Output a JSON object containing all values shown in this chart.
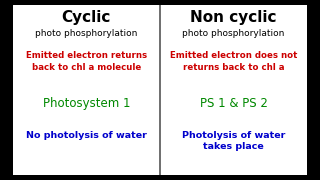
{
  "outer_background": "#000000",
  "title_cyclic": "Cyclic",
  "subtitle_cyclic": "photo phosphorylation",
  "title_noncyclic": "Non cyclic",
  "subtitle_noncyclic": "photo phosphorylation",
  "row1_cyclic": "Emitted electron returns\nback to chl a molecule",
  "row1_noncyclic": "Emitted electron does not\nreturns back to chl a",
  "row2_cyclic": "Photosystem 1",
  "row2_noncyclic": "PS 1 & PS 2",
  "row3_cyclic": "No photolysis of water",
  "row3_noncyclic": "Photolysis of water\ntakes place",
  "color_title": "#000000",
  "color_red": "#cc0000",
  "color_green": "#008800",
  "color_blue": "#0000cc",
  "divider_color": "#555555",
  "fig_bg": "#ffffff"
}
